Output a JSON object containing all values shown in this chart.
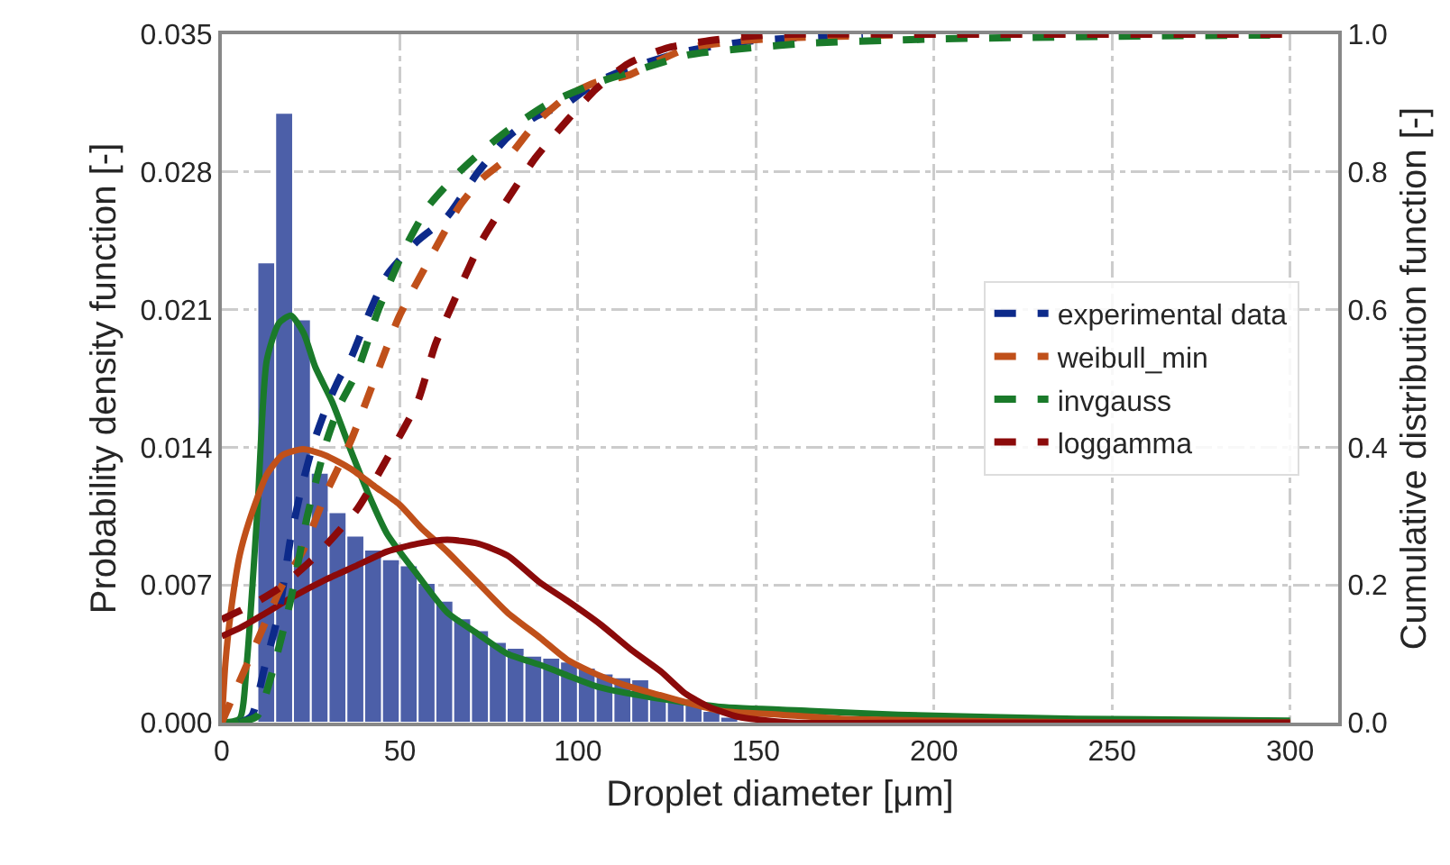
{
  "chart_data": {
    "type": "histogram",
    "xlabel": "Droplet diameter [μm]",
    "ylabel": "Probability density function [-]",
    "y2label": "Cumulative distribution function [-]",
    "bins": [
      5,
      10,
      15,
      20,
      25,
      30,
      35,
      40,
      45,
      50,
      55,
      60,
      65,
      70,
      75,
      80,
      85,
      90,
      95,
      100,
      105,
      110,
      115,
      120,
      125,
      130,
      135,
      140,
      145
    ],
    "values": [
      null,
      0.0234,
      0.031,
      0.0205,
      0.0127,
      0.0107,
      0.0095,
      0.0088,
      0.0083,
      0.008,
      0.0071,
      0.0062,
      0.0053,
      0.0047,
      0.0041,
      0.0038,
      0.0034,
      0.0033,
      0.0031,
      0.0028,
      0.0025,
      0.0023,
      0.0022,
      0.0013,
      0.0011,
      0.0009,
      0.0006,
      0.0003
    ],
    "color": "#4c5fa8",
    "series": [
      {
        "type": "line",
        "line_style": "solid",
        "color": "#1a7a2a",
        "x": [
          0,
          5,
          7,
          10,
          12.6,
          16,
          19.4,
          23,
          26.2,
          31,
          36.3,
          41,
          46.4,
          55,
          63.3,
          72,
          80.2,
          90,
          97,
          106,
          120,
          140,
          165,
          190,
          240,
          300
        ],
        "values": [
          0,
          0.0002,
          0.003,
          0.0108,
          0.0184,
          0.0203,
          0.0207,
          0.0198,
          0.0181,
          0.0163,
          0.0138,
          0.0117,
          0.0096,
          0.0075,
          0.0056,
          0.0045,
          0.0035,
          0.0029,
          0.0024,
          0.0018,
          0.0013,
          0.0008,
          0.0006,
          0.0004,
          0.0002,
          0.0001
        ]
      },
      {
        "type": "line",
        "line_style": "solid",
        "color": "#c0501a",
        "x": [
          0,
          1,
          2.5,
          5,
          7.6,
          12.6,
          17,
          22.8,
          29,
          36.3,
          43,
          49.8,
          56,
          63.3,
          72,
          80.2,
          89.5,
          97,
          106,
          115,
          123,
          131,
          140,
          157,
          174,
          200,
          250,
          300
        ],
        "values": [
          0,
          0.003,
          0.0056,
          0.0085,
          0.0102,
          0.0126,
          0.0136,
          0.0139,
          0.0136,
          0.0129,
          0.012,
          0.0111,
          0.0099,
          0.0087,
          0.0071,
          0.0056,
          0.0043,
          0.0032,
          0.0024,
          0.0018,
          0.0014,
          0.001,
          0.0006,
          0.0004,
          0.0002,
          0.0001,
          0,
          0
        ]
      },
      {
        "type": "line",
        "line_style": "solid",
        "color": "#8b0a0a",
        "x": [
          0,
          5,
          12.6,
          20,
          29.5,
          38,
          46.4,
          55,
          63.3,
          72,
          80.2,
          89.5,
          97,
          106.3,
          115,
          123.3,
          130,
          136.8,
          145,
          160,
          200,
          300
        ],
        "values": [
          0.0044,
          0.0048,
          0.0056,
          0.0064,
          0.0073,
          0.008,
          0.0087,
          0.0091,
          0.0093,
          0.0091,
          0.0085,
          0.0071,
          0.0062,
          0.005,
          0.0037,
          0.0026,
          0.0015,
          0.0008,
          0.0003,
          0,
          0,
          0
        ]
      },
      {
        "name": "experimental data",
        "type": "line",
        "axis": "y2",
        "line_style": "dashed",
        "color": "#0d2a8a",
        "x": [
          5,
          8.4,
          12,
          16,
          19.4,
          22.8,
          26,
          29.5,
          33,
          36.3,
          41,
          46.4,
          55,
          63.3,
          72,
          80.2,
          88,
          97,
          105,
          114,
          130,
          148,
          180
        ],
        "values": [
          0,
          0.01,
          0.08,
          0.16,
          0.27,
          0.35,
          0.41,
          0.46,
          0.5,
          0.53,
          0.59,
          0.65,
          0.7,
          0.735,
          0.8,
          0.85,
          0.88,
          0.9,
          0.93,
          0.95,
          0.975,
          0.99,
          1.0
        ]
      },
      {
        "name": "weibull_min",
        "type": "line",
        "axis": "y2",
        "line_style": "dashed",
        "color": "#c0501a",
        "x": [
          0,
          0.8,
          5,
          12.6,
          17,
          22.8,
          29,
          36.3,
          43,
          49.8,
          58,
          66.7,
          73,
          80.2,
          88,
          97,
          105,
          114,
          122,
          131,
          145,
          160,
          200,
          300
        ],
        "values": [
          0,
          0.01,
          0.06,
          0.15,
          0.2,
          0.25,
          0.33,
          0.41,
          0.5,
          0.59,
          0.67,
          0.75,
          0.79,
          0.82,
          0.87,
          0.91,
          0.93,
          0.94,
          0.96,
          0.98,
          0.99,
          0.995,
          1.0,
          1.0
        ]
      },
      {
        "name": "invgauss",
        "type": "line",
        "axis": "y2",
        "line_style": "dashed",
        "color": "#1a7a2a",
        "x": [
          5,
          10,
          14,
          19.4,
          24,
          29.5,
          33,
          38,
          44,
          51.5,
          58,
          66.7,
          73,
          80.2,
          92,
          105.6,
          118,
          131,
          148,
          165,
          200,
          250,
          300
        ],
        "values": [
          0,
          0.01,
          0.07,
          0.18,
          0.3,
          0.41,
          0.46,
          0.51,
          0.6,
          0.69,
          0.75,
          0.8,
          0.83,
          0.86,
          0.9,
          0.93,
          0.95,
          0.97,
          0.98,
          0.987,
          0.993,
          0.997,
          0.999
        ]
      },
      {
        "name": "loggamma",
        "type": "line",
        "axis": "y2",
        "line_style": "dashed",
        "color": "#8b0a0a",
        "x": [
          0,
          8,
          16,
          26,
          38,
          46,
          54.9,
          60,
          66.7,
          73,
          80.2,
          88,
          97,
          105,
          114,
          125,
          136,
          148,
          160,
          200,
          300
        ],
        "values": [
          0.15,
          0.17,
          0.195,
          0.24,
          0.31,
          0.38,
          0.465,
          0.55,
          0.63,
          0.7,
          0.76,
          0.82,
          0.875,
          0.92,
          0.957,
          0.98,
          0.99,
          0.997,
          1.0,
          1.0,
          1.0
        ]
      }
    ],
    "xlim": [
      0,
      313.5
    ],
    "xticks": [
      0,
      50,
      100,
      150,
      200,
      250,
      300
    ],
    "ylim": [
      0,
      0.035
    ],
    "yticks": [
      {
        "value": 0,
        "label": "0.000"
      },
      {
        "value": 0.007,
        "label": "0.007"
      },
      {
        "value": 0.014,
        "label": "0.014"
      },
      {
        "value": 0.021,
        "label": "0.021"
      },
      {
        "value": 0.028,
        "label": "0.028"
      },
      {
        "value": 0.035,
        "label": "0.035"
      }
    ],
    "y2lim": [
      0,
      1
    ],
    "y2ticks": [
      {
        "value": 0,
        "label": "0.0"
      },
      {
        "value": 0.2,
        "label": "0.2"
      },
      {
        "value": 0.4,
        "label": "0.4"
      },
      {
        "value": 0.6,
        "label": "0.6"
      },
      {
        "value": 0.8,
        "label": "0.8"
      },
      {
        "value": 1,
        "label": "1.0"
      }
    ],
    "grid": true,
    "legend": "right"
  }
}
